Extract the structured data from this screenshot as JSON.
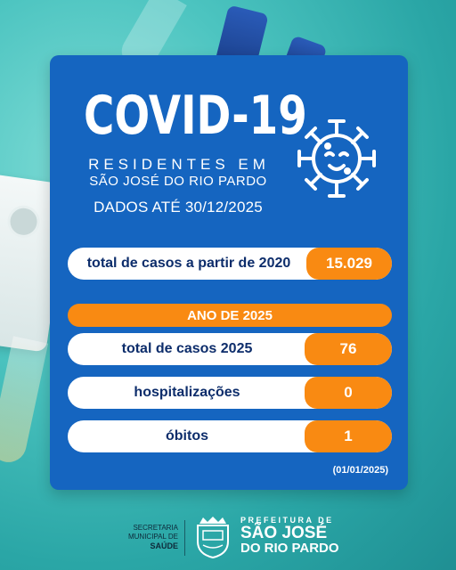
{
  "header": {
    "title": "COVID-19",
    "subtitle_line1": "RESIDENTES EM",
    "subtitle_line2": "SÃO JOSÉ DO RIO PARDO",
    "data_date": "DADOS ATÉ 30/12/2025",
    "icon": "virus-icon"
  },
  "totals": {
    "label": "total de casos a partir de 2020",
    "value": "15.029"
  },
  "year_section": {
    "label": "ANO DE 2025",
    "rows": [
      {
        "label": "total de casos 2025",
        "value": "76"
      },
      {
        "label": "hospitalizações",
        "value": "0"
      },
      {
        "label": "óbitos",
        "value": "1"
      }
    ],
    "footnote": "(01/01/2025)"
  },
  "footer": {
    "secretaria_line1": "SECRETARIA",
    "secretaria_line2": "MUNICIPAL DE",
    "secretaria_line3": "SAÚDE",
    "prefeitura_line1": "PREFEITURA DE",
    "prefeitura_line2": "SÃO JOSÉ",
    "prefeitura_line3": "DO RIO PARDO",
    "crest_icon": "municipal-crest-icon"
  },
  "colors": {
    "card": "#1565c0",
    "accent": "#f98a12",
    "text_dark": "#0d2d6b",
    "background": "#4cc4c0"
  }
}
